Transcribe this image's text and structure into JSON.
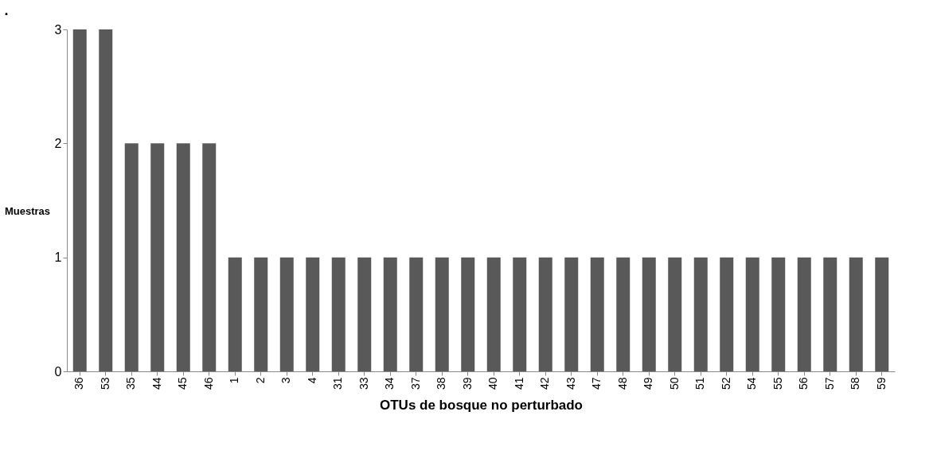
{
  "chart_data": {
    "type": "bar",
    "title": ".",
    "xlabel": "OTUs de bosque no perturbado",
    "ylabel": "Muestras",
    "categories": [
      "36",
      "53",
      "35",
      "44",
      "45",
      "46",
      "1",
      "2",
      "3",
      "4",
      "31",
      "33",
      "34",
      "37",
      "38",
      "39",
      "40",
      "41",
      "42",
      "43",
      "47",
      "48",
      "49",
      "50",
      "51",
      "52",
      "54",
      "55",
      "56",
      "57",
      "58",
      "59"
    ],
    "values": [
      3,
      3,
      2,
      2,
      2,
      2,
      1,
      1,
      1,
      1,
      1,
      1,
      1,
      1,
      1,
      1,
      1,
      1,
      1,
      1,
      1,
      1,
      1,
      1,
      1,
      1,
      1,
      1,
      1,
      1,
      1,
      1
    ],
    "color": "#595959",
    "ylim": [
      0,
      3
    ],
    "yticks": [
      0,
      1,
      2,
      3
    ],
    "grid": false
  }
}
